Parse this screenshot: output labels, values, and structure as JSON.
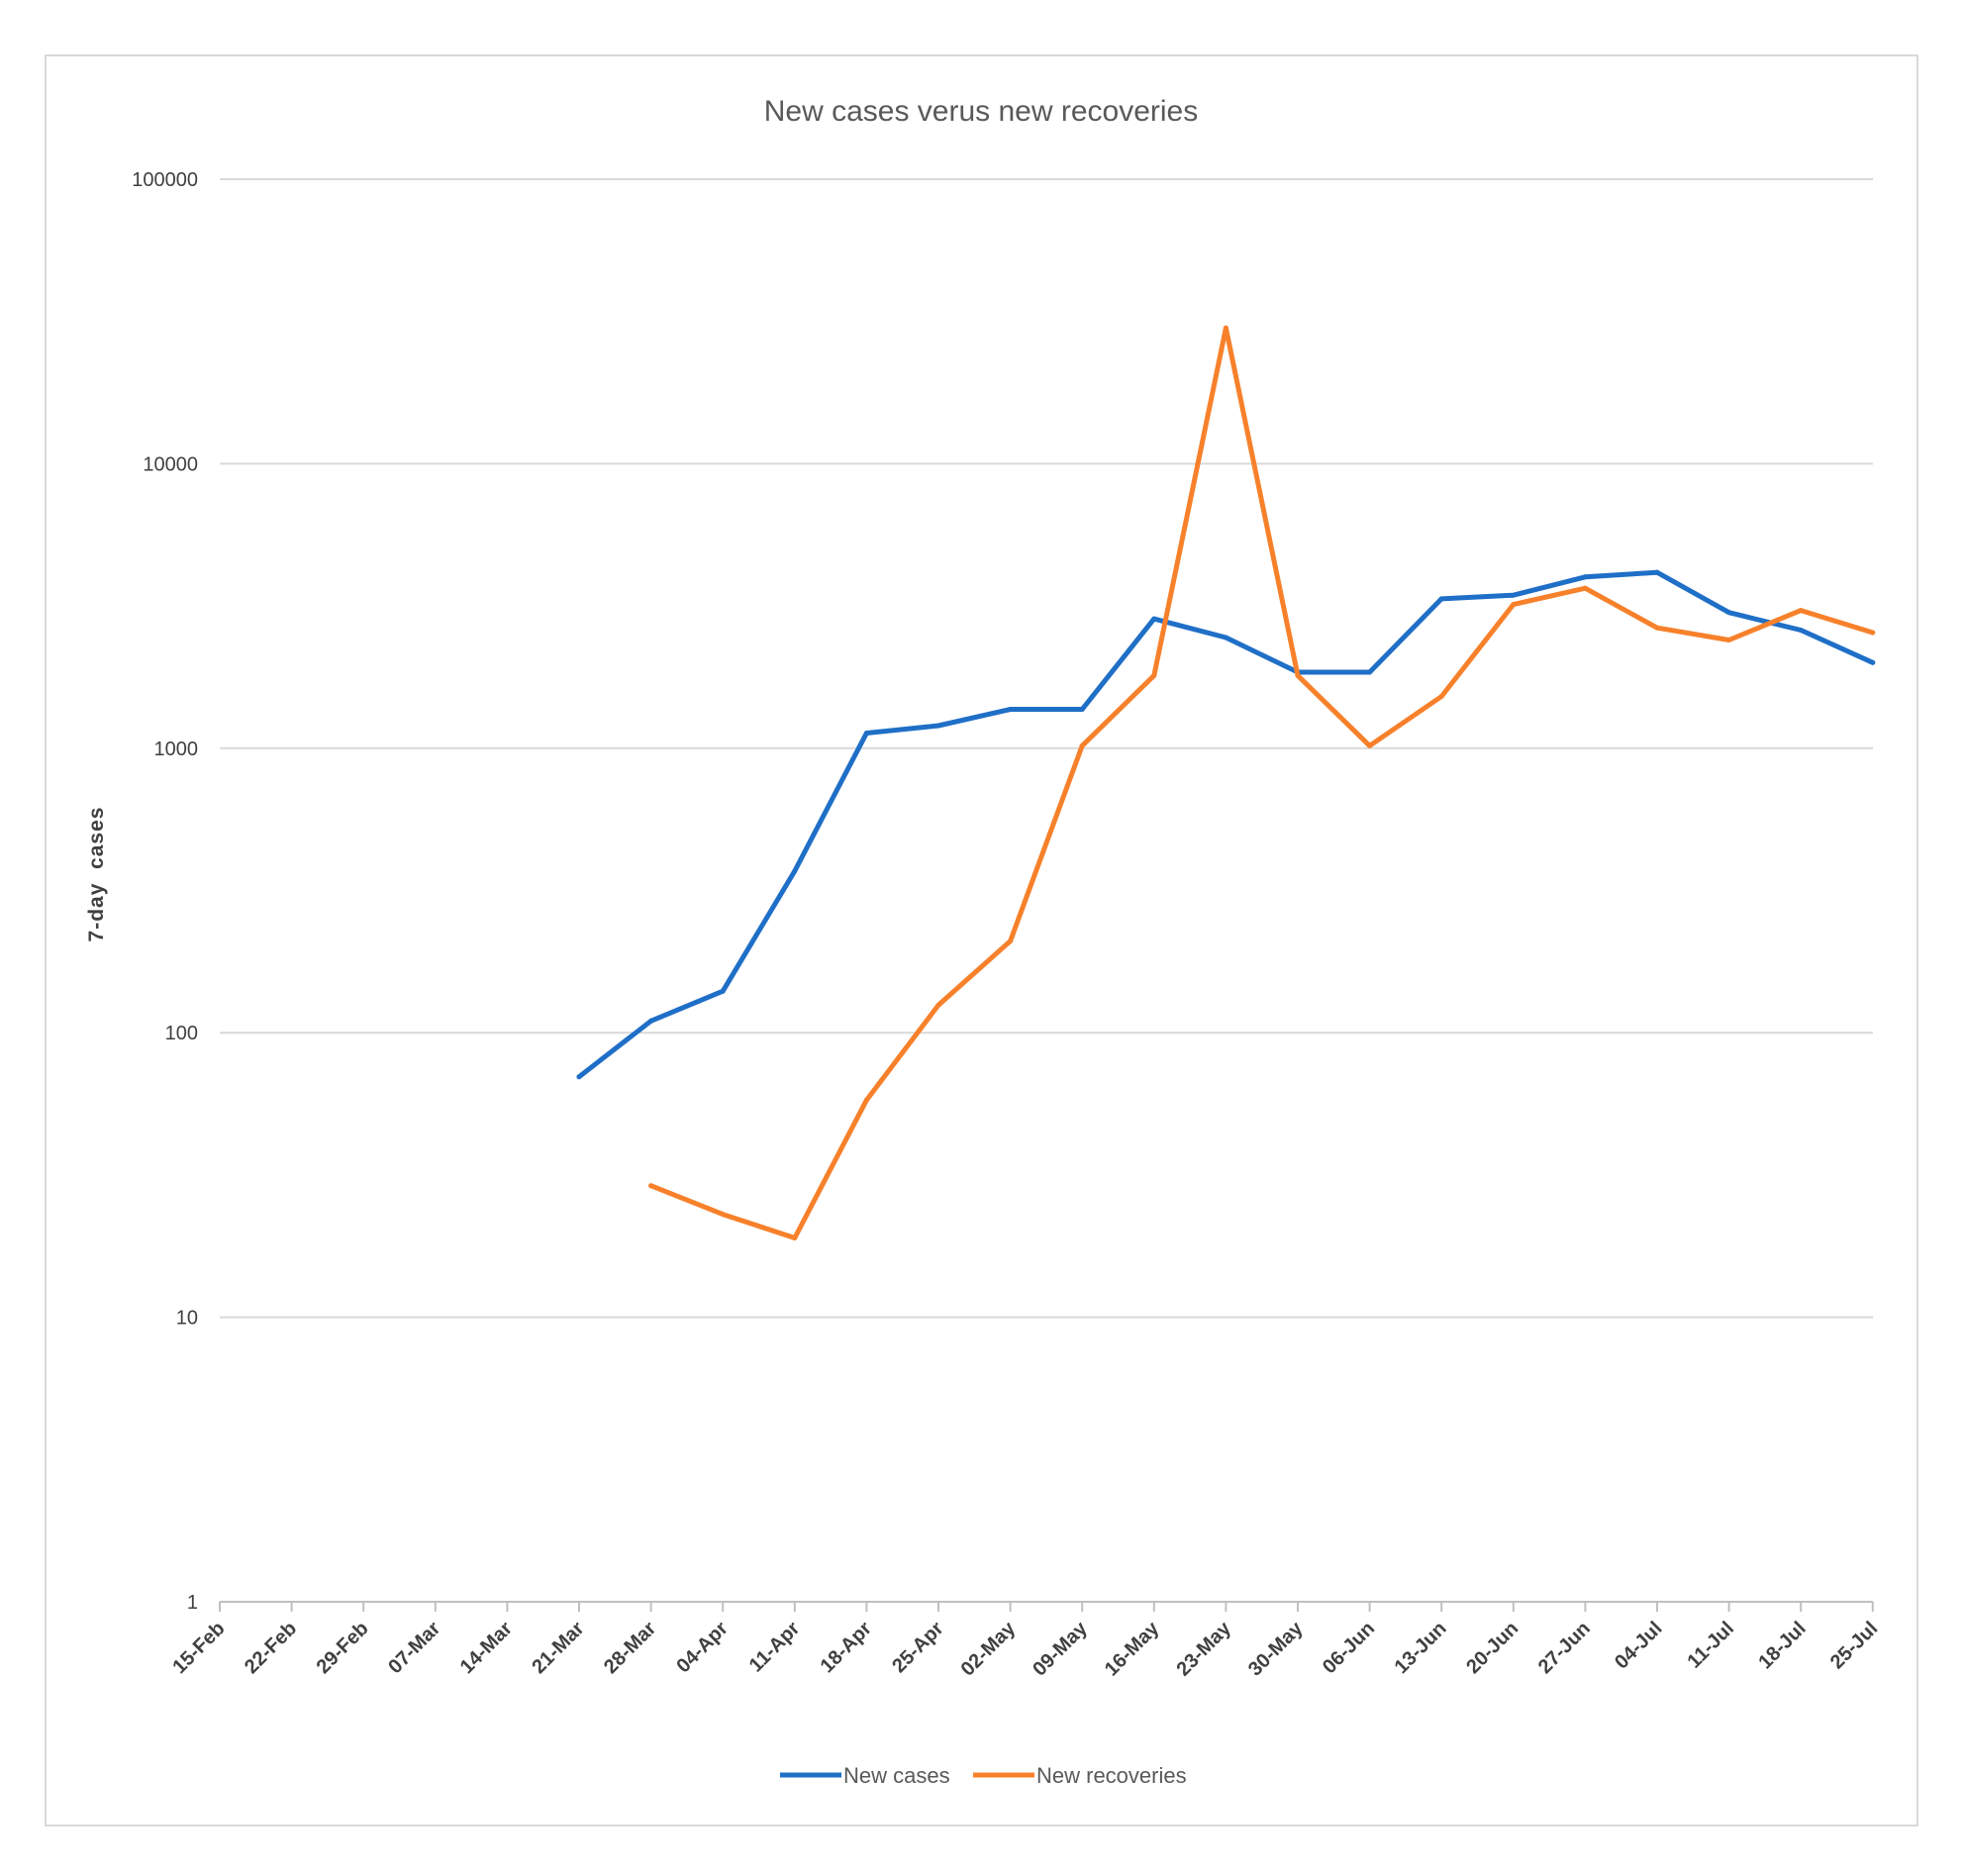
{
  "chart_data": {
    "type": "line",
    "title": "New cases verus new recoveries",
    "xlabel": "",
    "ylabel": "7-day  cases",
    "yscale": "log",
    "ylim": [
      1,
      100000
    ],
    "yticks": [
      "1",
      "10",
      "100",
      "1000",
      "10000",
      "100000"
    ],
    "grid": true,
    "legend_position": "bottom",
    "categories": [
      "15-Feb",
      "22-Feb",
      "29-Feb",
      "07-Mar",
      "14-Mar",
      "21-Mar",
      "28-Mar",
      "04-Apr",
      "11-Apr",
      "18-Apr",
      "25-Apr",
      "02-May",
      "09-May",
      "16-May",
      "23-May",
      "30-May",
      "06-Jun",
      "13-Jun",
      "20-Jun",
      "27-Jun",
      "04-Jul",
      "11-Jul",
      "18-Jul",
      "25-Jul"
    ],
    "series": [
      {
        "name": "New cases",
        "color": "#1f6fc7",
        "values": [
          null,
          null,
          null,
          null,
          null,
          70,
          110,
          140,
          370,
          1130,
          1200,
          1370,
          1370,
          2850,
          2450,
          1850,
          1850,
          3350,
          3450,
          4000,
          4150,
          3000,
          2600,
          2000
        ]
      },
      {
        "name": "New recoveries",
        "color": "#f7812b",
        "values": [
          null,
          null,
          null,
          null,
          null,
          null,
          29,
          23,
          19,
          58,
          125,
          210,
          1020,
          1800,
          30000,
          1800,
          1020,
          1520,
          3200,
          3650,
          2650,
          2400,
          3050,
          2550
        ]
      }
    ]
  }
}
